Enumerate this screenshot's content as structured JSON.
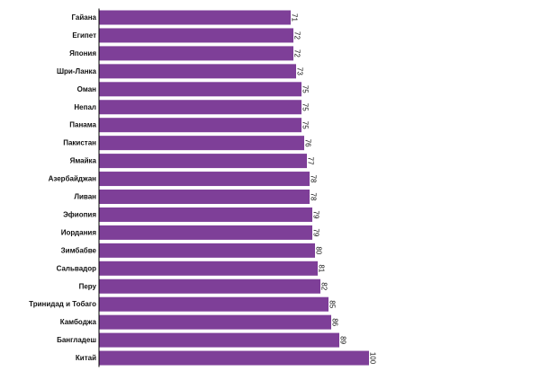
{
  "chart_data": {
    "type": "bar",
    "orientation": "horizontal",
    "categories": [
      "Гайана",
      "Египет",
      "Япония",
      "Шри-Ланка",
      "Оман",
      "Непал",
      "Панама",
      "Пакистан",
      "Ямайка",
      "Азербайджан",
      "Ливан",
      "Эфиопия",
      "Иордания",
      "Зимбабве",
      "Сальвадор",
      "Перу",
      "Тринидад и Тобаго",
      "Камбоджа",
      "Бангладеш",
      "Китай"
    ],
    "values": [
      71,
      72,
      72,
      73,
      75,
      75,
      75,
      76,
      77,
      78,
      78,
      79,
      79,
      80,
      81,
      82,
      85,
      86,
      89,
      100
    ],
    "value_labels": [
      "71",
      "72",
      "72",
      "73",
      "75",
      "75",
      "75",
      "76",
      "77",
      "78",
      "78",
      "79",
      "79",
      "80",
      "81",
      "82",
      "85",
      "86",
      "89",
      "100"
    ],
    "xlim": [
      0,
      100
    ],
    "bar_color": "#7e3f98",
    "axis_color": "#000000",
    "grid": false,
    "legend": "none",
    "value_label_rotation": "rotated 90° clockwise"
  }
}
